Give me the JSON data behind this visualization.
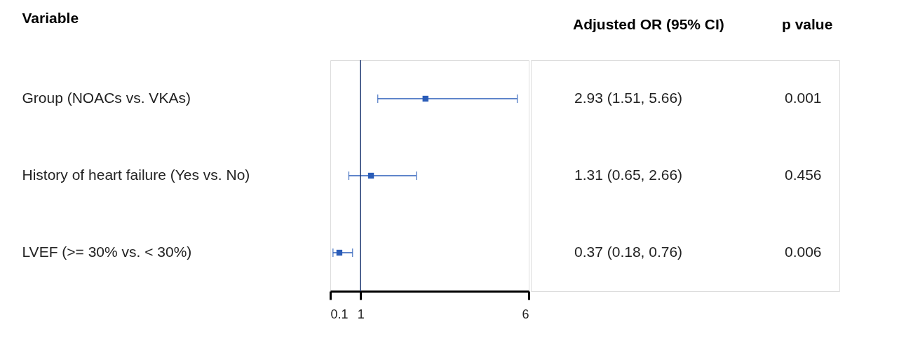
{
  "chart_data": {
    "type": "scatter",
    "orientation": "horizontal",
    "ylabel": "Variable",
    "categories": [
      "Group (NOACs vs. VKAs)",
      "History of heart failure (Yes vs. No)",
      "LVEF (>= 30% vs. < 30%)"
    ],
    "values": [
      2.93,
      1.31,
      0.37
    ],
    "errors": [
      [
        1.51,
        5.66
      ],
      [
        0.65,
        2.66
      ],
      [
        0.18,
        0.76
      ]
    ],
    "value_labels": [
      "2.93 (1.51, 5.66)",
      "1.31 (0.65, 2.66)",
      "0.37 (0.18, 0.76)"
    ],
    "color": "#2a5cb8",
    "marker": "square",
    "xlim": [
      0.1,
      6
    ],
    "xticks": [
      0.1,
      1,
      6
    ],
    "ref_lines": [
      {
        "axis": "x",
        "value": 1,
        "color": "#1f3a73"
      }
    ],
    "annotations": [
      "Adjusted OR (95% CI)",
      "p value",
      "0.001",
      "0.456",
      "0.006"
    ]
  }
}
